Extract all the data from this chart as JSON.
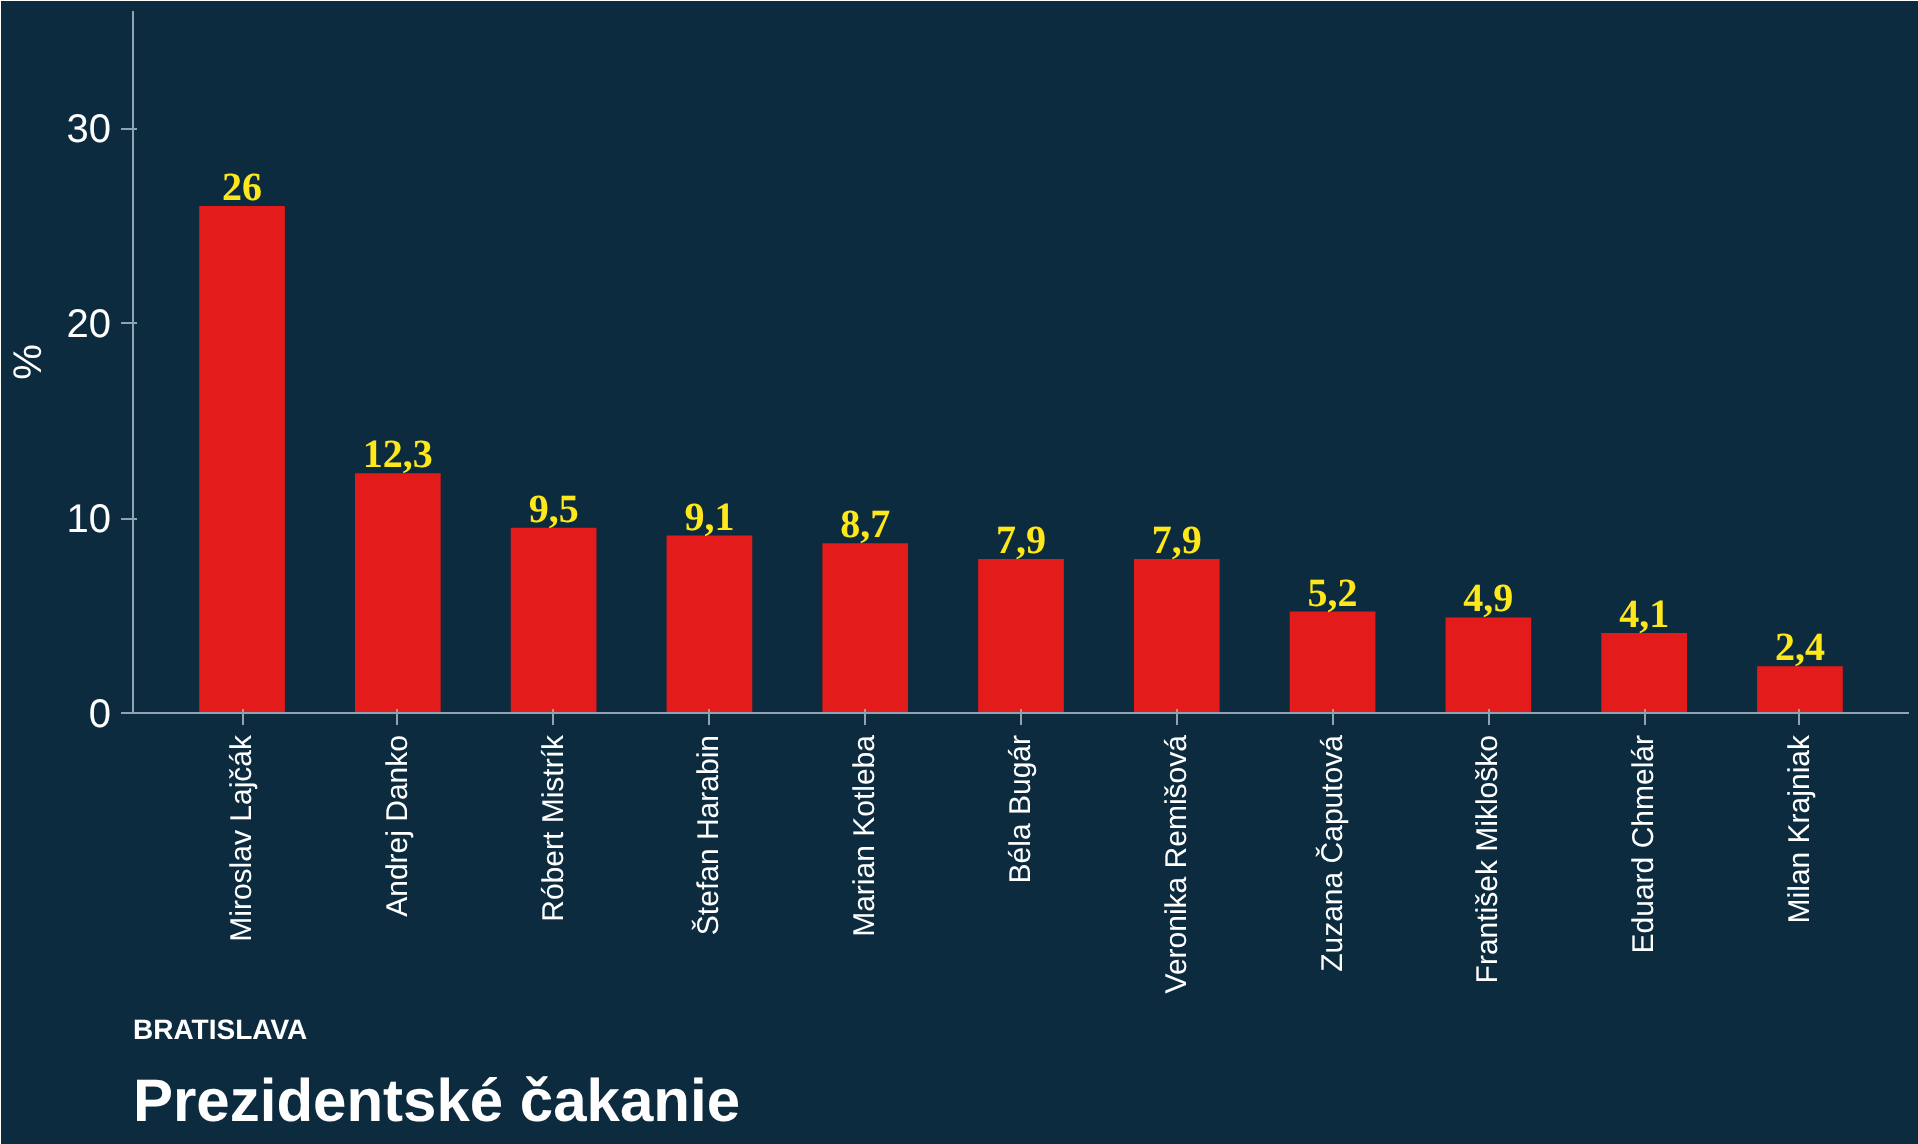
{
  "chart_data": {
    "type": "bar",
    "title": "Prezidentské čakanie",
    "ylabel": "%",
    "annotations": [
      "BRATISLAVA"
    ],
    "categories": [
      "Miroslav Lajčák",
      "Andrej Danko",
      "Róbert Mistrík",
      "Štefan Harabin",
      "Marian Kotleba",
      "Béla Bugár",
      "Veronika Remišová",
      "Zuzana Čaputová",
      "František Mikloško",
      "Eduard Chmelár",
      "Milan Krajniak"
    ],
    "values": [
      26,
      12.3,
      9.5,
      9.1,
      8.7,
      7.9,
      7.9,
      5.2,
      4.9,
      4.1,
      2.4
    ],
    "value_labels": [
      "26",
      "12,3",
      "9,5",
      "9,1",
      "8,7",
      "7,9",
      "7,9",
      "5,2",
      "4,9",
      "4,1",
      "2,4"
    ],
    "color": "#e31b1b",
    "ylim": [
      0,
      36
    ],
    "yticks": [
      0,
      10,
      20,
      30
    ],
    "grid": false
  }
}
